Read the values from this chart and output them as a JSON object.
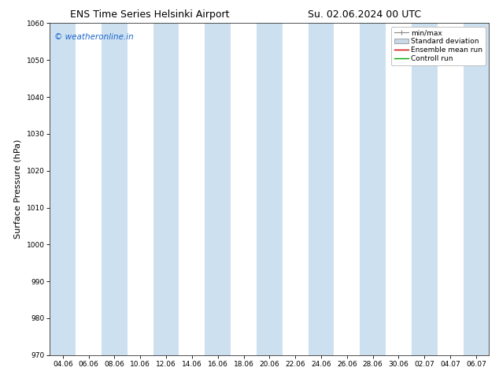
{
  "title_left": "ENS Time Series Helsinki Airport",
  "title_right": "Su. 02.06.2024 00 UTC",
  "ylabel": "Surface Pressure (hPa)",
  "ylim": [
    970,
    1060
  ],
  "yticks": [
    970,
    980,
    990,
    1000,
    1010,
    1020,
    1030,
    1040,
    1050,
    1060
  ],
  "xlabel_ticks": [
    "04.06",
    "06.06",
    "08.06",
    "10.06",
    "12.06",
    "14.06",
    "16.06",
    "18.06",
    "20.06",
    "22.06",
    "24.06",
    "26.06",
    "28.06",
    "30.06",
    "02.07",
    "04.07",
    "06.07"
  ],
  "watermark": "© weatheronline.in",
  "watermark_color": "#1a66cc",
  "background_color": "#ffffff",
  "plot_bg_color": "#ffffff",
  "shade_color": "#cce0f0",
  "legend_items": [
    {
      "label": "min/max"
    },
    {
      "label": "Standard deviation"
    },
    {
      "label": "Ensemble mean run"
    },
    {
      "label": "Controll run"
    }
  ],
  "title_fontsize": 9,
  "tick_fontsize": 6.5,
  "ylabel_fontsize": 8,
  "watermark_fontsize": 7.5,
  "legend_fontsize": 6.5
}
